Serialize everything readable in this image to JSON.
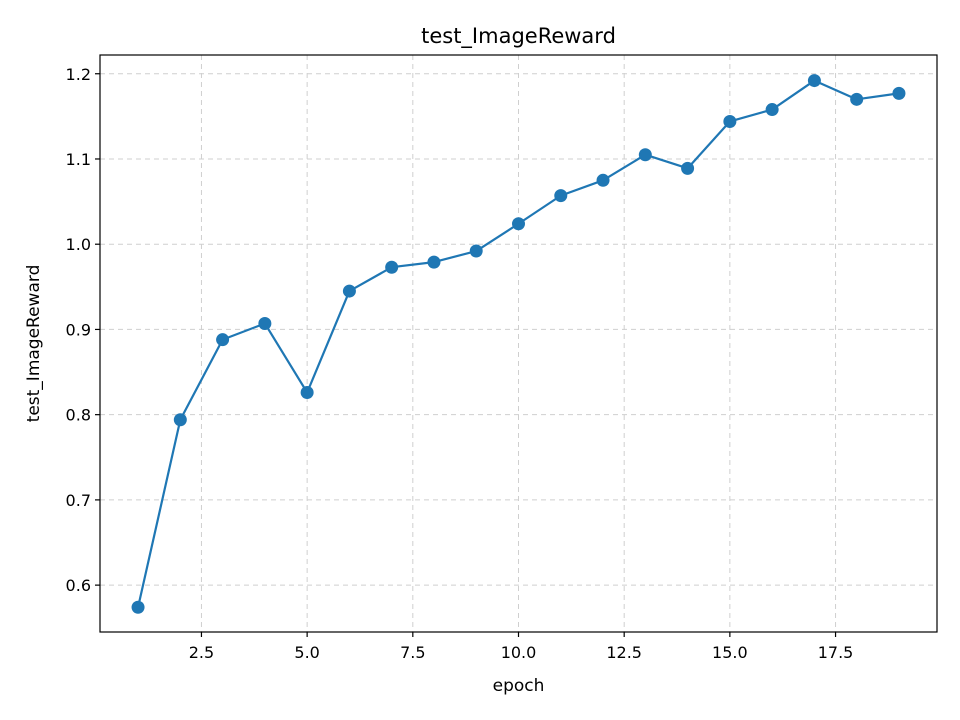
{
  "chart_data": {
    "type": "line",
    "title": "test_ImageReward",
    "xlabel": "epoch",
    "ylabel": "test_ImageReward",
    "xlim": [
      0.1,
      19.9
    ],
    "ylim": [
      0.545,
      1.222
    ],
    "xticks": [
      2.5,
      5.0,
      7.5,
      10.0,
      12.5,
      15.0,
      17.5
    ],
    "xtick_labels": [
      "2.5",
      "5.0",
      "7.5",
      "10.0",
      "12.5",
      "15.0",
      "17.5"
    ],
    "yticks": [
      0.6,
      0.7,
      0.8,
      0.9,
      1.0,
      1.1,
      1.2
    ],
    "ytick_labels": [
      "0.6",
      "0.7",
      "0.8",
      "0.9",
      "1.0",
      "1.1",
      "1.2"
    ],
    "grid": true,
    "series": [
      {
        "color": "#1f77b4",
        "marker": "circle",
        "x": [
          1,
          2,
          3,
          4,
          5,
          6,
          7,
          8,
          9,
          10,
          11,
          12,
          13,
          14,
          15,
          16,
          17,
          18,
          19
        ],
        "y": [
          0.574,
          0.794,
          0.888,
          0.907,
          0.826,
          0.945,
          0.973,
          0.979,
          0.992,
          1.024,
          1.057,
          1.075,
          1.105,
          1.089,
          1.144,
          1.158,
          1.192,
          1.17,
          1.177
        ]
      }
    ]
  }
}
